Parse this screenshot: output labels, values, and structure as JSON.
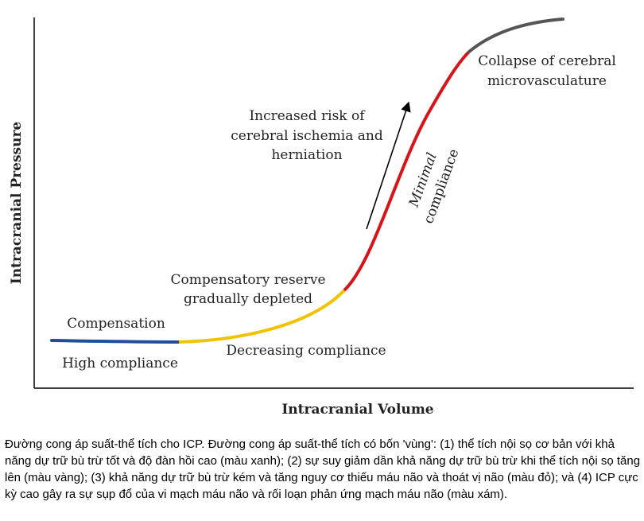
{
  "axes": {
    "x_label": "Intracranial Volume",
    "y_label": "Intracranial Pressure"
  },
  "zones": [
    {
      "name": "compensation",
      "color": "#1f4e9c"
    },
    {
      "name": "compensatory-reserve",
      "color": "#f2c200"
    },
    {
      "name": "minimal-compliance",
      "color": "#d7141a"
    },
    {
      "name": "collapse",
      "color": "#555555"
    }
  ],
  "labels": {
    "compensation": "Compensation",
    "high_compliance": "High compliance",
    "reserve_line1": "Compensatory reserve",
    "reserve_line2": "gradually depleted",
    "decreasing_compliance": "Decreasing compliance",
    "risk_line1": "Increased risk of",
    "risk_line2": "cerebral ischemia and",
    "risk_line3": "herniation",
    "minimal_line1": "Minimal",
    "minimal_line2": "compliance",
    "collapse_line1": "Collapse of cerebral",
    "collapse_line2": "microvasculature"
  },
  "caption": "Đường cong áp suất-thể tích cho ICP. Đường cong áp suất-thể tích có bốn 'vùng': (1) thể tích nội sọ cơ bản với khả năng dự trữ bù trừ tốt và độ đàn hồi cao (màu xanh); (2) sự suy giảm dần khả năng dự trữ bù trừ khi thể tích nội sọ tăng lên (màu vàng); (3) khả năng dự trữ bù trừ kém và tăng nguy cơ thiếu máu não và thoát vị não (màu đỏ); và (4) ICP cực kỳ cao gây ra sự sụp đổ của vi mạch máu não và rối loạn phản ứng mạch máu não (màu xám)."
}
